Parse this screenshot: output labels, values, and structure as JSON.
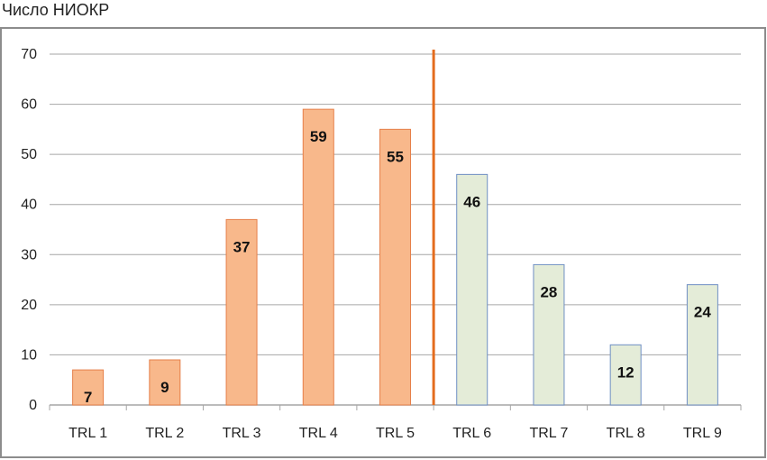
{
  "chart_data": {
    "type": "bar",
    "title": "Число НИОКР",
    "categories": [
      "TRL 1",
      "TRL 2",
      "TRL 3",
      "TRL 4",
      "TRL 5",
      "TRL 6",
      "TRL 7",
      "TRL 8",
      "TRL 9"
    ],
    "values": [
      7,
      9,
      37,
      59,
      55,
      46,
      28,
      12,
      24
    ],
    "ylim": [
      0,
      70
    ],
    "yticks": [
      0,
      10,
      20,
      30,
      40,
      50,
      60,
      70
    ],
    "grid": true,
    "legend": "none",
    "divider_after_category": "TRL 5",
    "colors": {
      "group1_fill": "#f8b88b",
      "group1_stroke": "#e6804a",
      "group2_fill": "#e4ecd8",
      "group2_stroke": "#6f8fc4",
      "divider": "#e46c1e",
      "grid": "#a6a6a6",
      "frame": "#8c8c8c"
    }
  }
}
